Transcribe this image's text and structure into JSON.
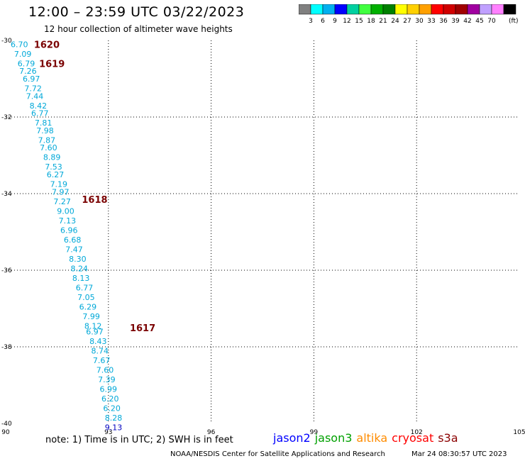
{
  "header": {
    "title": "12:00 – 23:59 UTC 03/22/2023",
    "subtitle": "12 hour collection of altimeter wave heights"
  },
  "colorbar": {
    "colors": [
      "#808080",
      "#00ffff",
      "#00b0f0",
      "#0000ff",
      "#00d0a0",
      "#40ff40",
      "#00b000",
      "#008000",
      "#ffff00",
      "#ffd000",
      "#ffa000",
      "#ff0000",
      "#d00000",
      "#a00000",
      "#a000a0",
      "#c0a0ff",
      "#ff80ff",
      "#000000"
    ],
    "labels": [
      "3",
      "6",
      "9",
      "12",
      "15",
      "18",
      "21",
      "24",
      "27",
      "30",
      "33",
      "36",
      "39",
      "42",
      "45",
      "70"
    ],
    "unit": "(ft)"
  },
  "chart_data": {
    "type": "scatter",
    "title": "12:00 – 23:59 UTC 03/22/2023",
    "subtitle": "12 hour collection of altimeter wave heights",
    "xlim": [
      90,
      105
    ],
    "ylim": [
      -40,
      -30
    ],
    "xticks": [
      "90",
      "93",
      "96",
      "99",
      "102",
      "105"
    ],
    "yticks": [
      "-30",
      "-32",
      "-34",
      "-36",
      "-38",
      "-40"
    ],
    "grid": true,
    "series": [
      {
        "name": "jason2",
        "color": "#00a8d8",
        "points": [
          {
            "lon": 90.4,
            "lat": -30.1,
            "swh": "6.70"
          },
          {
            "lon": 90.5,
            "lat": -30.35,
            "swh": "7.09"
          },
          {
            "lon": 90.6,
            "lat": -30.6,
            "swh": "6.79"
          },
          {
            "lon": 90.65,
            "lat": -30.8,
            "swh": "7.26"
          },
          {
            "lon": 90.75,
            "lat": -31.0,
            "swh": "6.97"
          },
          {
            "lon": 90.8,
            "lat": -31.25,
            "swh": "7.72"
          },
          {
            "lon": 90.85,
            "lat": -31.45,
            "swh": "7.44"
          },
          {
            "lon": 90.95,
            "lat": -31.7,
            "swh": "8.42"
          },
          {
            "lon": 91.0,
            "lat": -31.9,
            "swh": "6.77"
          },
          {
            "lon": 91.1,
            "lat": -32.15,
            "swh": "7.81"
          },
          {
            "lon": 91.15,
            "lat": -32.35,
            "swh": "7.98"
          },
          {
            "lon": 91.2,
            "lat": -32.6,
            "swh": "7.87"
          },
          {
            "lon": 91.25,
            "lat": -32.8,
            "swh": "7.60"
          },
          {
            "lon": 91.35,
            "lat": -33.05,
            "swh": "8.89"
          },
          {
            "lon": 91.4,
            "lat": -33.3,
            "swh": "7.53"
          },
          {
            "lon": 91.45,
            "lat": -33.5,
            "swh": "6.27"
          },
          {
            "lon": 91.55,
            "lat": -33.75,
            "swh": "7.19"
          },
          {
            "lon": 91.6,
            "lat": -33.95,
            "swh": "7.97"
          },
          {
            "lon": 91.65,
            "lat": -34.2,
            "swh": "7.27"
          },
          {
            "lon": 91.75,
            "lat": -34.45,
            "swh": "9.00"
          },
          {
            "lon": 91.8,
            "lat": -34.7,
            "swh": "7.13"
          },
          {
            "lon": 91.85,
            "lat": -34.95,
            "swh": "6.96"
          },
          {
            "lon": 91.95,
            "lat": -35.2,
            "swh": "6.68"
          },
          {
            "lon": 92.0,
            "lat": -35.45,
            "swh": "7.47"
          },
          {
            "lon": 92.1,
            "lat": -35.7,
            "swh": "8.30"
          },
          {
            "lon": 92.15,
            "lat": -35.95,
            "swh": "8.24"
          },
          {
            "lon": 92.2,
            "lat": -36.2,
            "swh": "8.13"
          },
          {
            "lon": 92.3,
            "lat": -36.45,
            "swh": "6.77"
          },
          {
            "lon": 92.35,
            "lat": -36.7,
            "swh": "7.05"
          },
          {
            "lon": 92.4,
            "lat": -36.95,
            "swh": "6.29"
          },
          {
            "lon": 92.5,
            "lat": -37.2,
            "swh": "7.99"
          },
          {
            "lon": 92.55,
            "lat": -37.45,
            "swh": "8.12"
          },
          {
            "lon": 92.6,
            "lat": -37.6,
            "swh": "6.97"
          },
          {
            "lon": 92.7,
            "lat": -37.85,
            "swh": "8.43"
          },
          {
            "lon": 92.75,
            "lat": -38.1,
            "swh": "8.74"
          },
          {
            "lon": 92.8,
            "lat": -38.35,
            "swh": "7.67"
          },
          {
            "lon": 92.9,
            "lat": -38.6,
            "swh": "7.60"
          },
          {
            "lon": 92.95,
            "lat": -38.85,
            "swh": "7.39"
          },
          {
            "lon": 93.0,
            "lat": -39.1,
            "swh": "6.99"
          },
          {
            "lon": 93.05,
            "lat": -39.35,
            "swh": "6.20"
          },
          {
            "lon": 93.1,
            "lat": -39.6,
            "swh": "6.20"
          },
          {
            "lon": 93.15,
            "lat": -39.85,
            "swh": "8.28"
          }
        ]
      },
      {
        "name": "jason2-9ft",
        "color": "#0000c0",
        "points": [
          {
            "lon": 93.15,
            "lat": -40.1,
            "swh": "9.13"
          }
        ]
      }
    ],
    "time_labels": [
      {
        "lon": 91.2,
        "lat": -30.1,
        "text": "1620"
      },
      {
        "lon": 91.35,
        "lat": -30.6,
        "text": "1619"
      },
      {
        "lon": 92.6,
        "lat": -34.15,
        "text": "1618"
      },
      {
        "lon": 94.0,
        "lat": -37.5,
        "text": "1617"
      }
    ]
  },
  "legend": {
    "items": [
      {
        "label": "jason2",
        "color": "#0000ff"
      },
      {
        "label": "jason3",
        "color": "#00a000"
      },
      {
        "label": "altika",
        "color": "#ff8c00"
      },
      {
        "label": "cryosat",
        "color": "#ff0000"
      },
      {
        "label": "s3a",
        "color": "#8b0000"
      }
    ]
  },
  "footer": {
    "note": "note:  1) Time is in UTC;  2) SWH is in feet",
    "credit": "NOAA/NESDIS Center for Satellite Applications and Research",
    "timestamp": "Mar 24 08:30:57 UTC 2023"
  }
}
